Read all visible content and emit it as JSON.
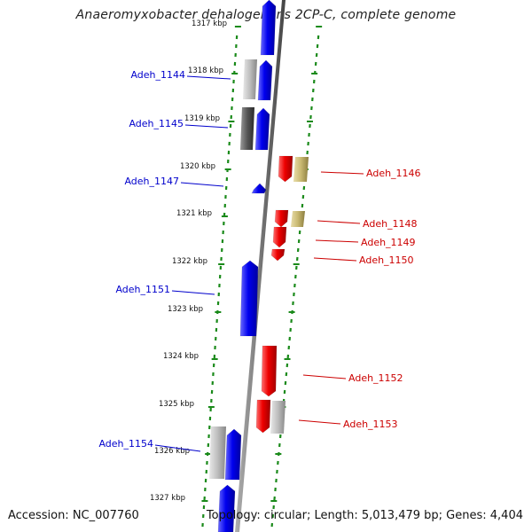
{
  "title": "Anaeromyxobacter dehalogenans 2CP-C, complete genome",
  "footer": {
    "accession": "Accession: NC_007760",
    "summary": "Topology: circular; Length: 5,013,479 bp; Genes: 4,404"
  },
  "colors": {
    "forward_gene": "#0000ee",
    "reverse_gene": "#ee0000",
    "forward_label": "#0000cc",
    "reverse_label": "#cc0000",
    "ruler": "#1a8a1a",
    "backbone": "#808080",
    "feature_gray": "#bdbdbd",
    "feature_dark": "#555555",
    "feature_olive": "#c8b870"
  },
  "ticks": [
    {
      "label": "1317 kbp"
    },
    {
      "label": "1318 kbp"
    },
    {
      "label": "1319 kbp"
    },
    {
      "label": "1320 kbp"
    },
    {
      "label": "1321 kbp"
    },
    {
      "label": "1322 kbp"
    },
    {
      "label": "1323 kbp"
    },
    {
      "label": "1324 kbp"
    },
    {
      "label": "1325 kbp"
    },
    {
      "label": "1326 kbp"
    },
    {
      "label": "1327 kbp"
    }
  ],
  "genes_forward": [
    {
      "name": "Adeh_1144"
    },
    {
      "name": "Adeh_1145"
    },
    {
      "name": "Adeh_1147"
    },
    {
      "name": "Adeh_1151"
    },
    {
      "name": "Adeh_1154"
    }
  ],
  "genes_reverse": [
    {
      "name": "Adeh_1146"
    },
    {
      "name": "Adeh_1148"
    },
    {
      "name": "Adeh_1149"
    },
    {
      "name": "Adeh_1150"
    },
    {
      "name": "Adeh_1152"
    },
    {
      "name": "Adeh_1153"
    }
  ]
}
